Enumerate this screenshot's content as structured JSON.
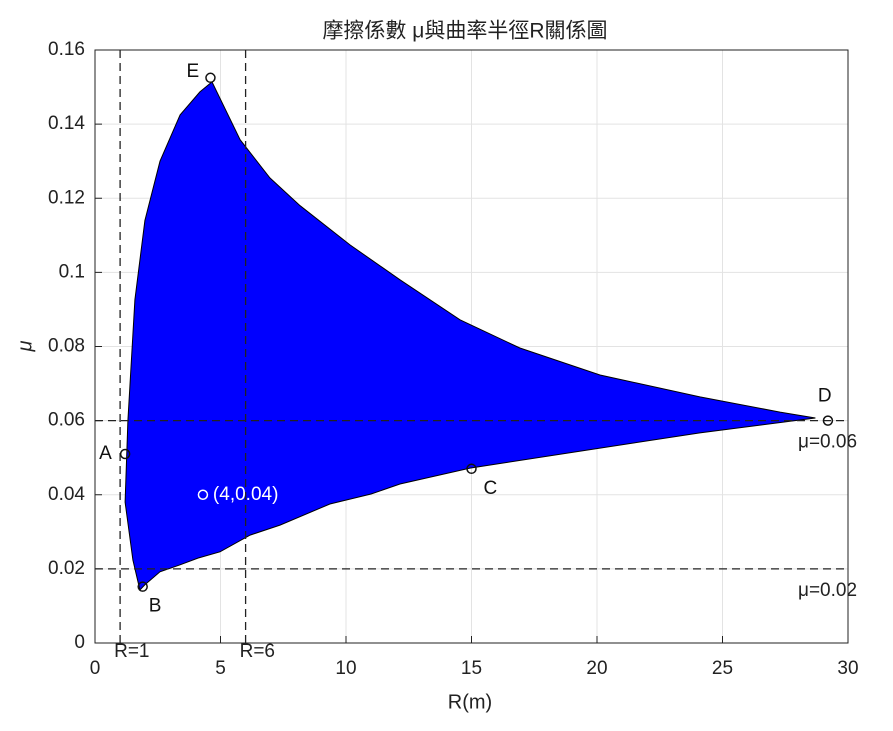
{
  "chart_data": {
    "type": "area",
    "title": "摩擦係數 μ與曲率半徑R關係圖",
    "xlabel": "R(m)",
    "ylabel": "μ",
    "color": "#0000ff",
    "x": [
      1.2,
      1.31,
      1.59,
      1.99,
      2.59,
      3.39,
      4.18,
      4.66,
      5.78,
      6.97,
      8.17,
      10.16,
      12.15,
      14.54,
      16.93,
      20.12,
      24.1,
      27.29,
      28.7,
      26.5,
      24.1,
      20.12,
      14.94,
      12.15,
      11.0,
      9.36,
      7.37,
      6.18,
      4.98,
      4.1,
      3.39,
      2.59,
      1.99,
      1.79,
      1.51
    ],
    "values": [
      0.038,
      0.06,
      0.0926,
      0.114,
      0.13,
      0.1425,
      0.1487,
      0.1514,
      0.1358,
      0.1255,
      0.118,
      0.1074,
      0.098,
      0.0872,
      0.0796,
      0.0723,
      0.0664,
      0.0623,
      0.0607,
      0.0588,
      0.0567,
      0.0526,
      0.0472,
      0.0429,
      0.0402,
      0.0375,
      0.0318,
      0.0291,
      0.0246,
      0.0229,
      0.0211,
      0.0192,
      0.0157,
      0.0143,
      0.0224
    ],
    "xlim": [
      0,
      30
    ],
    "xticks": [
      0,
      5,
      10,
      15,
      20,
      25,
      30
    ],
    "ylim": [
      0,
      0.16
    ],
    "yticks": [
      0,
      0.02,
      0.04,
      0.06,
      0.08,
      0.1,
      0.12,
      0.14,
      0.16
    ],
    "grid": true,
    "vlines": [
      {
        "x": 1,
        "label": "R=1"
      },
      {
        "x": 6,
        "label": "R=6"
      }
    ],
    "hlines": [
      {
        "y": 0.06,
        "label": "μ=0.06"
      },
      {
        "y": 0.02,
        "label": "μ=0.02"
      }
    ],
    "annotations": [
      {
        "text": "A",
        "x": 1.2,
        "y": 0.051
      },
      {
        "text": "B",
        "x": 1.9,
        "y": 0.0152
      },
      {
        "text": "C",
        "x": 15,
        "y": 0.047
      },
      {
        "text": "D",
        "x": 29.2,
        "y": 0.06
      },
      {
        "text": "E",
        "x": 4.6,
        "y": 0.1525
      },
      {
        "text": "(4,0.04)",
        "x": 4.3,
        "y": 0.04
      }
    ]
  }
}
